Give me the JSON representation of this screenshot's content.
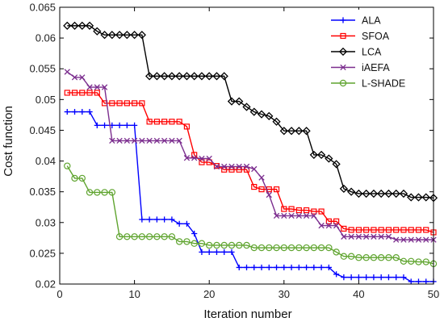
{
  "chart_data": {
    "type": "line",
    "xlabel": "Iteration number",
    "ylabel": "Cost function",
    "xlim": [
      0,
      50
    ],
    "ylim": [
      0.02,
      0.065
    ],
    "xticks": [
      0,
      10,
      20,
      30,
      40,
      50
    ],
    "yticks": [
      0.02,
      0.025,
      0.03,
      0.035,
      0.04,
      0.045,
      0.05,
      0.055,
      0.06,
      0.065
    ],
    "ytick_labels": [
      "0.02",
      "0.025",
      "0.03",
      "0.035",
      "0.04",
      "0.045",
      "0.05",
      "0.055",
      "0.06",
      "0.065"
    ],
    "grid": false,
    "legend_position": "top-right",
    "x": [
      1,
      2,
      3,
      4,
      5,
      6,
      7,
      8,
      9,
      10,
      11,
      12,
      13,
      14,
      15,
      16,
      17,
      18,
      19,
      20,
      21,
      22,
      23,
      24,
      25,
      26,
      27,
      28,
      29,
      30,
      31,
      32,
      33,
      34,
      35,
      36,
      37,
      38,
      39,
      40,
      41,
      42,
      43,
      44,
      45,
      46,
      47,
      48,
      49,
      50
    ],
    "series": [
      {
        "name": "ALA",
        "color": "#0000ff",
        "marker": "plus",
        "values": [
          0.048,
          0.048,
          0.048,
          0.048,
          0.0458,
          0.0458,
          0.0458,
          0.0458,
          0.0458,
          0.0458,
          0.0305,
          0.0305,
          0.0305,
          0.0305,
          0.0305,
          0.0298,
          0.0298,
          0.0282,
          0.0252,
          0.0252,
          0.0252,
          0.0252,
          0.0252,
          0.0227,
          0.0227,
          0.0227,
          0.0227,
          0.0227,
          0.0227,
          0.0227,
          0.0227,
          0.0227,
          0.0227,
          0.0227,
          0.0227,
          0.0227,
          0.0216,
          0.0211,
          0.0211,
          0.0211,
          0.0211,
          0.0211,
          0.0211,
          0.0211,
          0.0211,
          0.0211,
          0.0204,
          0.0204,
          0.0204,
          0.0204
        ]
      },
      {
        "name": "SFOA",
        "color": "#ff0000",
        "marker": "square",
        "values": [
          0.0511,
          0.0511,
          0.0511,
          0.0511,
          0.0511,
          0.0494,
          0.0494,
          0.0494,
          0.0494,
          0.0494,
          0.0494,
          0.0464,
          0.0464,
          0.0464,
          0.0464,
          0.0464,
          0.0456,
          0.041,
          0.0398,
          0.0398,
          0.0392,
          0.0386,
          0.0386,
          0.0386,
          0.0386,
          0.0358,
          0.0354,
          0.0354,
          0.0354,
          0.0322,
          0.0322,
          0.032,
          0.032,
          0.0318,
          0.0318,
          0.0302,
          0.0302,
          0.029,
          0.0288,
          0.0288,
          0.0288,
          0.0288,
          0.0288,
          0.0288,
          0.0288,
          0.0288,
          0.0288,
          0.0288,
          0.0288,
          0.0284
        ]
      },
      {
        "name": "LCA",
        "color": "#000000",
        "marker": "diamond",
        "values": [
          0.062,
          0.062,
          0.062,
          0.062,
          0.0611,
          0.0605,
          0.0605,
          0.0605,
          0.0605,
          0.0605,
          0.0605,
          0.0538,
          0.0538,
          0.0538,
          0.0538,
          0.0538,
          0.0538,
          0.0538,
          0.0538,
          0.0538,
          0.0538,
          0.0538,
          0.0497,
          0.0497,
          0.0488,
          0.048,
          0.0476,
          0.0473,
          0.0464,
          0.0449,
          0.0449,
          0.0449,
          0.0449,
          0.041,
          0.041,
          0.0404,
          0.0395,
          0.0355,
          0.035,
          0.0347,
          0.0347,
          0.0347,
          0.0347,
          0.0347,
          0.0347,
          0.0347,
          0.0341,
          0.0341,
          0.0341,
          0.034
        ]
      },
      {
        "name": "iAEFA",
        "color": "#7b2d8e",
        "marker": "x",
        "values": [
          0.0545,
          0.0536,
          0.0536,
          0.052,
          0.052,
          0.052,
          0.0433,
          0.0433,
          0.0433,
          0.0433,
          0.0433,
          0.0433,
          0.0433,
          0.0433,
          0.0433,
          0.0433,
          0.0405,
          0.0405,
          0.0404,
          0.0404,
          0.0391,
          0.0391,
          0.0391,
          0.0391,
          0.0391,
          0.0387,
          0.0373,
          0.0345,
          0.0311,
          0.0311,
          0.0311,
          0.0311,
          0.0311,
          0.0311,
          0.0295,
          0.0295,
          0.0295,
          0.0277,
          0.0277,
          0.0277,
          0.0277,
          0.0277,
          0.0277,
          0.0277,
          0.0272,
          0.0272,
          0.0272,
          0.0272,
          0.0272,
          0.0272
        ]
      },
      {
        "name": "L-SHADE",
        "color": "#5fa42f",
        "marker": "circle",
        "values": [
          0.0392,
          0.0372,
          0.0372,
          0.0349,
          0.0349,
          0.0349,
          0.0349,
          0.0277,
          0.0277,
          0.0277,
          0.0277,
          0.0277,
          0.0277,
          0.0277,
          0.0277,
          0.0269,
          0.0269,
          0.0266,
          0.0266,
          0.0263,
          0.0263,
          0.0263,
          0.0263,
          0.0263,
          0.0263,
          0.0259,
          0.0259,
          0.0259,
          0.0259,
          0.0259,
          0.0259,
          0.0259,
          0.0259,
          0.0259,
          0.0259,
          0.0259,
          0.0252,
          0.0245,
          0.0245,
          0.0243,
          0.0243,
          0.0243,
          0.0243,
          0.0243,
          0.0243,
          0.0237,
          0.0237,
          0.0236,
          0.0236,
          0.0233
        ]
      }
    ]
  }
}
